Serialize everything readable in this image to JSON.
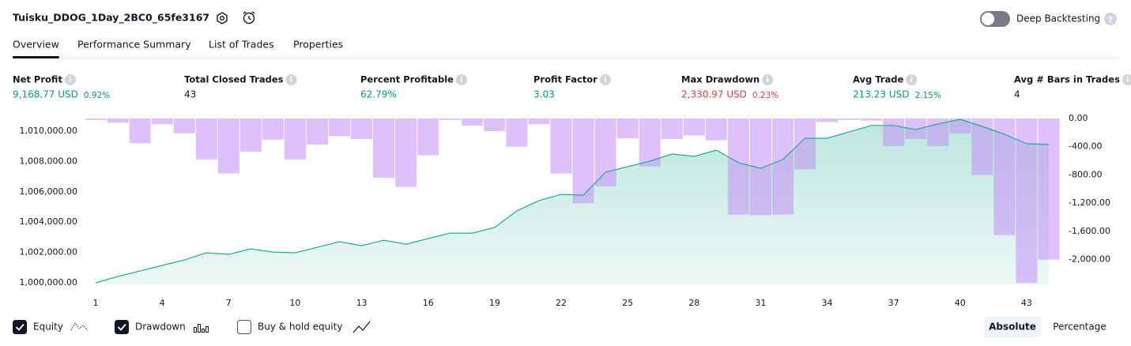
{
  "header": {
    "title": "Tuisku_DDOG_1Day_2BC0_65fe3167",
    "deep_backtesting": {
      "label": "Deep Backtesting",
      "enabled": false
    }
  },
  "tabs": [
    "Overview",
    "Performance Summary",
    "List of Trades",
    "Properties"
  ],
  "active_tab": 0,
  "metrics": [
    {
      "label": "Net Profit",
      "value": "9,168.77 USD",
      "change": "0.92%",
      "color": "#089981"
    },
    {
      "label": "Total Closed Trades",
      "value": "43",
      "color": "#131722"
    },
    {
      "label": "Percent Profitable",
      "value": "62.79%",
      "color": "#089981"
    },
    {
      "label": "Profit Factor",
      "value": "3.03",
      "color": "#089981"
    },
    {
      "label": "Max Drawdown",
      "value": "2,330.97 USD",
      "change": "0.23%",
      "color": "#f23645"
    },
    {
      "label": "Avg Trade",
      "value": "213.23 USD",
      "change": "2.15%",
      "color": "#089981"
    },
    {
      "label": "Avg # Bars in Trades",
      "value": "4",
      "color": "#131722"
    }
  ],
  "chart_data": {
    "type": "combo",
    "x": [
      1,
      2,
      3,
      4,
      5,
      6,
      7,
      8,
      9,
      10,
      11,
      12,
      13,
      14,
      15,
      16,
      17,
      18,
      19,
      20,
      21,
      22,
      23,
      24,
      25,
      26,
      27,
      28,
      29,
      30,
      31,
      32,
      33,
      34,
      35,
      36,
      37,
      38,
      39,
      40,
      41,
      42,
      43,
      44
    ],
    "xlim": [
      0.5,
      44.5
    ],
    "xticks": [
      1,
      4,
      7,
      10,
      13,
      16,
      19,
      22,
      25,
      28,
      31,
      34,
      37,
      40,
      43
    ],
    "ylim": [
      999900,
      1010830
    ],
    "yticks": [
      {
        "value": 1000000,
        "label": "1,000,000.00"
      },
      {
        "value": 1002000,
        "label": "1,002,000.00"
      },
      {
        "value": 1004000,
        "label": "1,004,000.00"
      },
      {
        "value": 1006000,
        "label": "1,006,000.00"
      },
      {
        "value": 1008000,
        "label": "1,008,000.00"
      },
      {
        "value": 1010000,
        "label": "1,010,000.00"
      }
    ],
    "y2lim": [
      -2350,
      0
    ],
    "y2ticks": [
      {
        "value": 0,
        "label": "0.00"
      },
      {
        "value": -400,
        "label": "-400.00"
      },
      {
        "value": -800,
        "label": "-800.00"
      },
      {
        "value": -1200,
        "label": "-1,200.00"
      },
      {
        "value": -1600,
        "label": "-1,600.00"
      },
      {
        "value": -2000,
        "label": "-2,000.00"
      }
    ],
    "series": [
      {
        "name": "Equity",
        "color": "#22ab94",
        "visible": true,
        "values": [
          1000000,
          1000420,
          1000780,
          1001150,
          1001510,
          1001980,
          1001880,
          1002240,
          1002030,
          1001980,
          1002340,
          1002710,
          1002450,
          1002810,
          1002550,
          1002920,
          1003280,
          1003280,
          1003650,
          1004740,
          1005420,
          1005830,
          1005780,
          1007290,
          1007660,
          1008020,
          1008490,
          1008330,
          1008750,
          1007920,
          1007550,
          1008130,
          1009530,
          1009530,
          1009950,
          1010370,
          1010370,
          1010100,
          1010470,
          1010780,
          1010310,
          1009790,
          1009170,
          1009120
        ]
      },
      {
        "name": "Drawdown",
        "color": "#c38ef5",
        "visible": true,
        "axis": "y2",
        "values": [
          -20,
          -60,
          -350,
          -80,
          -210,
          -580,
          -780,
          -470,
          -300,
          -580,
          -370,
          -250,
          -290,
          -840,
          -970,
          -520,
          -20,
          -100,
          -180,
          -400,
          -80,
          -780,
          -1200,
          -960,
          -280,
          -680,
          -290,
          -240,
          -310,
          -1360,
          -1370,
          -1360,
          -720,
          -50,
          -20,
          -30,
          -390,
          -290,
          -390,
          -210,
          -800,
          -1650,
          -2330,
          -2000
        ]
      }
    ]
  },
  "legend": {
    "buy_hold": {
      "label": "Buy & hold equity",
      "checked": false
    }
  },
  "view_modes": [
    "Absolute",
    "Percentage"
  ],
  "active_view": 0
}
